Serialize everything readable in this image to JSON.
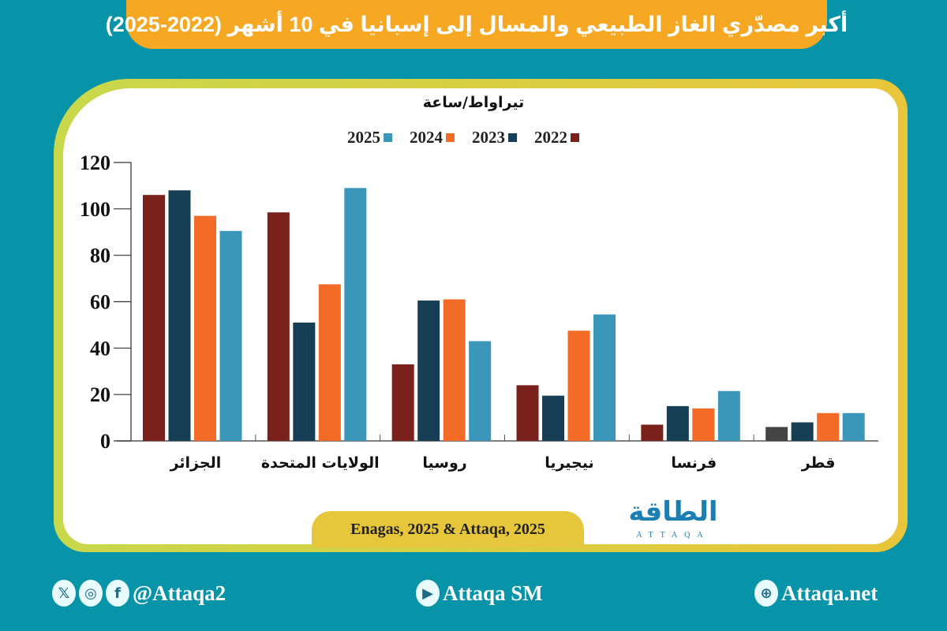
{
  "title": "أكبر مصدّري الغاز الطبيعي والمسال إلى إسبانيا في 10 أشهر (2022-2025)",
  "source": "Enagas, 2025 & Attaqa, 2025",
  "logo": {
    "arabic": "الطاقة",
    "latin": "ATTAQA"
  },
  "footer": {
    "social_handle": "@Attaqa2",
    "youtube": "Attaqa SM",
    "website": "Attaqa.net"
  },
  "colors": {
    "background": "#0793a8",
    "banner": "#f7a823",
    "y2022": "#7a211b",
    "y2023": "#163f55",
    "y2024": "#f46a27",
    "y2025": "#3a97ba",
    "qatar2022": "#444444"
  },
  "chart_data": {
    "type": "bar",
    "title": "أكبر مصدّري الغاز الطبيعي والمسال إلى إسبانيا في 10 أشهر (2022-2025)",
    "ylabel": "تيراواط/ساعة",
    "xlabel": "",
    "ylim": [
      0,
      120
    ],
    "yticks": [
      "0",
      "20",
      "40",
      "60",
      "80",
      "100",
      "120"
    ],
    "legend_position": "top-center",
    "categories": [
      "الجزائر",
      "الولايات المتحدة",
      "روسيا",
      "نيجيريا",
      "فرنسا",
      "قطر"
    ],
    "series": [
      {
        "name": "2022",
        "color": "#7a211b",
        "values": [
          106,
          98.5,
          33,
          24,
          7,
          6
        ]
      },
      {
        "name": "2023",
        "color": "#163f55",
        "values": [
          108,
          51,
          60.5,
          19.5,
          15,
          8
        ]
      },
      {
        "name": "2024",
        "color": "#f46a27",
        "values": [
          97,
          67.5,
          61,
          47.5,
          14,
          12
        ]
      },
      {
        "name": "2025",
        "color": "#3a97ba",
        "values": [
          90.5,
          109,
          43,
          54.5,
          21.5,
          12
        ]
      }
    ]
  }
}
